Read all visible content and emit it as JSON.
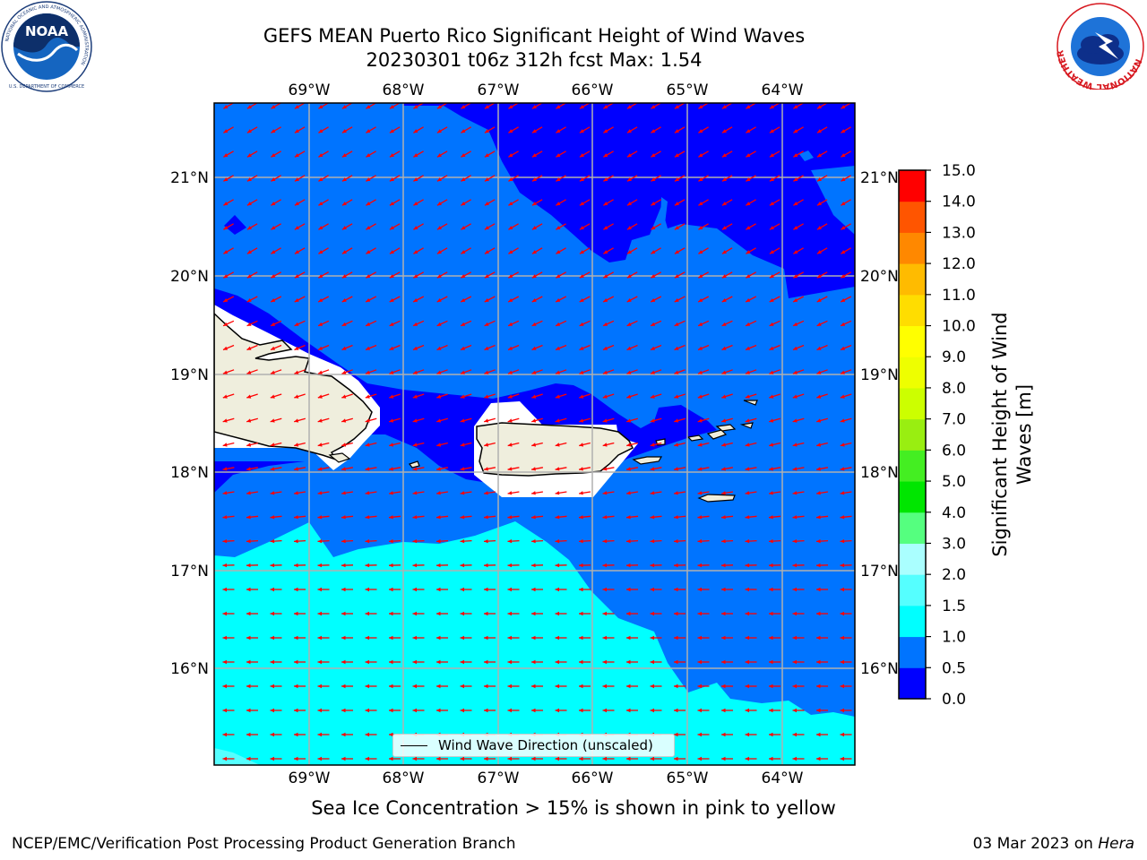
{
  "title": {
    "line1": "GEFS MEAN Puerto Rico Significant Height of Wind Waves",
    "line2": "20230301 t06z 312h fcst   Max: 1.54"
  },
  "logos": {
    "left": {
      "text": "NOAA",
      "ring_text": "NATIONAL OCEANIC AND ATMOSPHERIC ADMINISTRATION",
      "bottom_text": "U.S. DEPARTMENT OF COMMERCE"
    },
    "right": {
      "ring_text": "NATIONAL WEATHER SERVICE"
    }
  },
  "map": {
    "lon_labels": [
      "69°W",
      "68°W",
      "67°W",
      "66°W",
      "65°W",
      "64°W"
    ],
    "lat_labels": [
      "21°N",
      "20°N",
      "19°N",
      "18°N",
      "17°N",
      "16°N"
    ],
    "legend_label": "Wind Wave Direction (unscaled)",
    "arrow_color": "#ff0000",
    "land_color": "#efeedd"
  },
  "colorbar": {
    "title_line1": "Significant Height of Wind",
    "title_line2": "Waves [m]",
    "ticks": [
      "0.0",
      "0.5",
      "1.0",
      "1.5",
      "2.0",
      "3.0",
      "4.0",
      "5.0",
      "6.0",
      "7.0",
      "8.0",
      "9.0",
      "10.0",
      "11.0",
      "12.0",
      "13.0",
      "14.0",
      "15.0"
    ],
    "colors": [
      "#0000ff",
      "#0074ff",
      "#00ffff",
      "#55ffff",
      "#aaffff",
      "#55ff7f",
      "#00e600",
      "#44ee22",
      "#99ee11",
      "#ccff00",
      "#eeff00",
      "#ffff00",
      "#ffdd00",
      "#ffbb00",
      "#ff8800",
      "#ff5500",
      "#ff0000"
    ]
  },
  "subnote": "Sea Ice Concentration > 15% is shown in pink to yellow",
  "footer": {
    "left": "NCEP/EMC/Verification Post Processing Product Generation Branch",
    "right_prefix": "03 Mar 2023 on ",
    "right_machine": "Hera"
  }
}
